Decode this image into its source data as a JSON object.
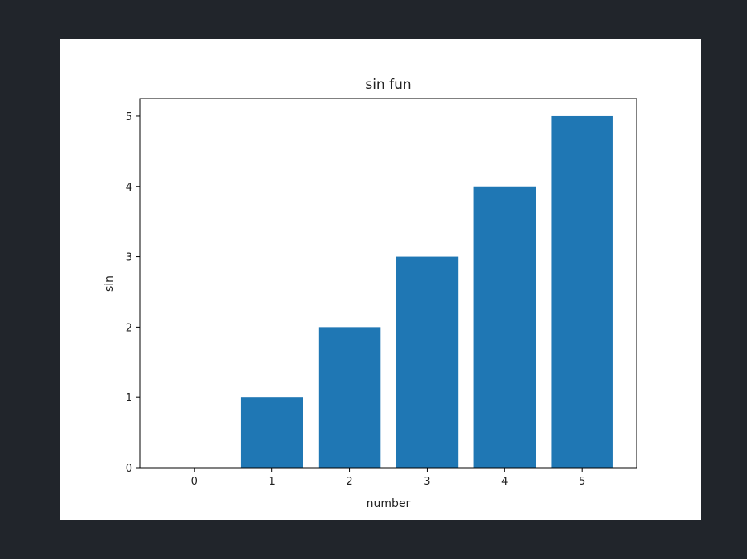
{
  "colors": {
    "background": "#21252b",
    "figure": "#ffffff",
    "bar": "#1f77b4",
    "axis": "#000000",
    "text": "#222222"
  },
  "chart_data": {
    "type": "bar",
    "title": "sin fun",
    "xlabel": "number",
    "ylabel": "sin",
    "categories": [
      "0",
      "1",
      "2",
      "3",
      "4",
      "5"
    ],
    "values": [
      0,
      1,
      2,
      3,
      4,
      5
    ],
    "xlim": [
      -0.7,
      5.7
    ],
    "ylim": [
      0,
      5.25
    ],
    "yticks": [
      0,
      1,
      2,
      3,
      4,
      5
    ],
    "yticklabels": [
      "0",
      "1",
      "2",
      "3",
      "4",
      "5"
    ],
    "grid": false,
    "legend": "none"
  }
}
